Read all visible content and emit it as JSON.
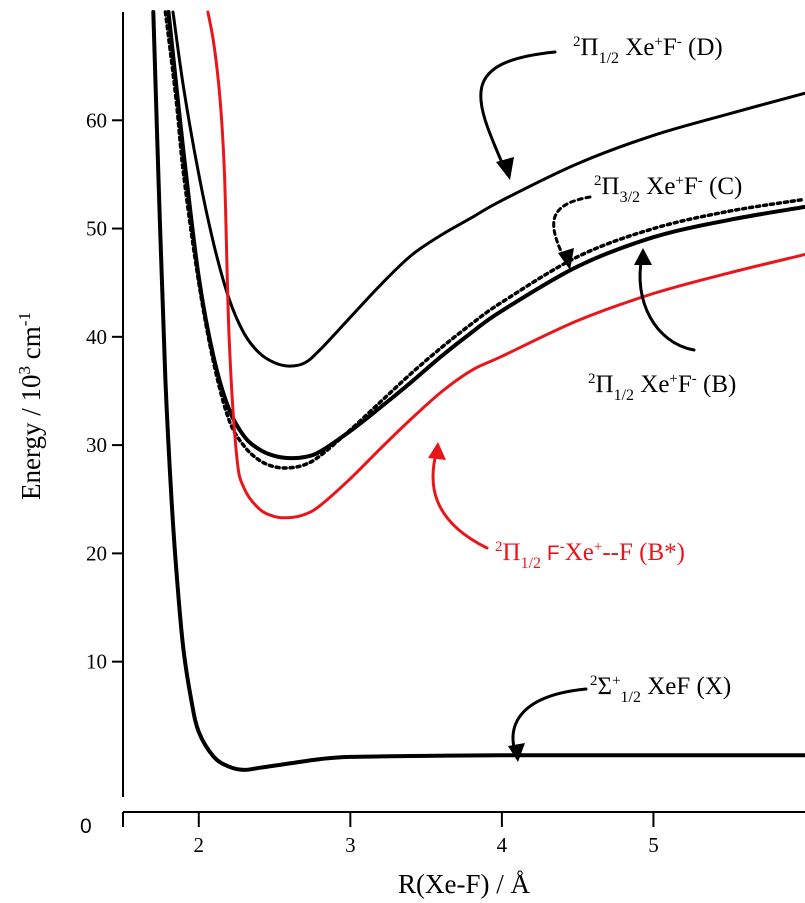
{
  "chart_data": {
    "type": "line",
    "xlabel": "R(Xe-F) / Å",
    "ylabel_main": "Energy  /  10",
    "ylabel_sup": "3",
    "ylabel_unit": " cm",
    "ylabel_unit_sup": "-1",
    "xlim": [
      1.5,
      6.0
    ],
    "ylim": [
      -2.5,
      70
    ],
    "x_ticks": [
      2,
      3,
      4,
      5
    ],
    "y_ticks": [
      10,
      20,
      30,
      40,
      50,
      60
    ],
    "y_zero_label": "0",
    "grid": false,
    "colors": {
      "black": "#000000",
      "red": "#e8161b"
    },
    "series": [
      {
        "name": "D",
        "color": "#000000",
        "style": "solid",
        "x": [
          1.83,
          1.9,
          2.0,
          2.1,
          2.2,
          2.3,
          2.4,
          2.5,
          2.6,
          2.7,
          2.8,
          3.0,
          3.2,
          3.4,
          3.6,
          3.8,
          4.0,
          4.5,
          5.0,
          5.5,
          6.0
        ],
        "y": [
          70,
          63,
          55,
          48.5,
          43.5,
          40.3,
          38.5,
          37.6,
          37.3,
          37.6,
          38.8,
          41.8,
          44.8,
          47.5,
          49.4,
          51.0,
          52.6,
          56.0,
          58.6,
          60.6,
          62.5
        ]
      },
      {
        "name": "C",
        "color": "#000000",
        "style": "dotted",
        "x": [
          1.78,
          1.85,
          1.9,
          2.0,
          2.1,
          2.2,
          2.3,
          2.4,
          2.5,
          2.6,
          2.7,
          2.8,
          3.0,
          3.2,
          3.4,
          3.6,
          3.8,
          4.0,
          4.5,
          5.0,
          5.5,
          6.0
        ],
        "y": [
          70,
          62,
          55,
          45,
          37.5,
          32.3,
          29.9,
          28.6,
          28.0,
          27.9,
          28.2,
          29.0,
          31.4,
          34.0,
          36.6,
          39.0,
          41.2,
          43.2,
          47.4,
          50.0,
          51.6,
          52.7
        ]
      },
      {
        "name": "B",
        "color": "#000000",
        "style": "solid-thick",
        "x": [
          1.8,
          1.9,
          2.0,
          2.1,
          2.2,
          2.3,
          2.4,
          2.5,
          2.6,
          2.7,
          2.8,
          3.0,
          3.2,
          3.4,
          3.6,
          3.8,
          4.0,
          4.5,
          5.0,
          5.5,
          6.0
        ],
        "y": [
          70,
          57,
          45.5,
          38,
          33.3,
          30.8,
          29.6,
          29.0,
          28.8,
          28.9,
          29.4,
          31.3,
          33.5,
          35.8,
          38.2,
          40.4,
          42.4,
          46.5,
          49.2,
          50.8,
          52.0
        ]
      },
      {
        "name": "B*",
        "color": "#e8161b",
        "style": "solid",
        "x": [
          2.06,
          2.1,
          2.14,
          2.17,
          2.2,
          2.25,
          2.3,
          2.4,
          2.5,
          2.6,
          2.7,
          2.8,
          3.0,
          3.2,
          3.4,
          3.6,
          3.8,
          4.0,
          4.5,
          5.0,
          5.5,
          6.0
        ],
        "y": [
          70,
          67,
          62,
          55,
          40,
          29,
          26,
          24.1,
          23.4,
          23.3,
          23.6,
          24.4,
          26.9,
          29.7,
          32.4,
          34.9,
          36.9,
          38.2,
          41.5,
          44.0,
          45.9,
          47.6
        ]
      },
      {
        "name": "X",
        "color": "#000000",
        "style": "solid-thick",
        "x": [
          1.7,
          1.74,
          1.78,
          1.82,
          1.86,
          1.9,
          1.95,
          2.0,
          2.1,
          2.2,
          2.3,
          2.4,
          2.5,
          2.6,
          2.8,
          3.0,
          3.5,
          4.0,
          5.0,
          6.0
        ],
        "y": [
          70,
          52,
          36,
          25,
          17,
          11,
          6.5,
          3.5,
          1.2,
          0.3,
          0.0,
          0.2,
          0.4,
          0.6,
          1.0,
          1.2,
          1.3,
          1.35,
          1.35,
          1.35
        ]
      }
    ],
    "annotations": [
      {
        "id": "D",
        "text_pre": "2",
        "greek": "Π",
        "sub": "1/2",
        "text": " Xe",
        "sup1": "+",
        "text2": "F",
        "sup2": "-",
        "text3": " (D)"
      },
      {
        "id": "C",
        "text_pre": "2",
        "greek": "Π",
        "sub": "3/2",
        "text": " Xe",
        "sup1": "+",
        "text2": "F",
        "sup2": "-",
        "text3": " (C)"
      },
      {
        "id": "B",
        "text_pre": "2",
        "greek": "Π",
        "sub": "1/2",
        "text": " Xe",
        "sup1": "+",
        "text2": "F",
        "sup2": "-",
        "text3": " (B)"
      },
      {
        "id": "Bstar",
        "text_pre": "2",
        "greek": "Π",
        "sub": "1/2",
        "text": " F",
        "sup1": "-",
        "text2": "Xe",
        "sup2": "+",
        "text3": "--F  (B*)"
      },
      {
        "id": "X",
        "text_pre": "2",
        "greek": "Σ",
        "sup0": "+",
        "sub": "1/2",
        "text3": " XeF (X)"
      }
    ]
  }
}
